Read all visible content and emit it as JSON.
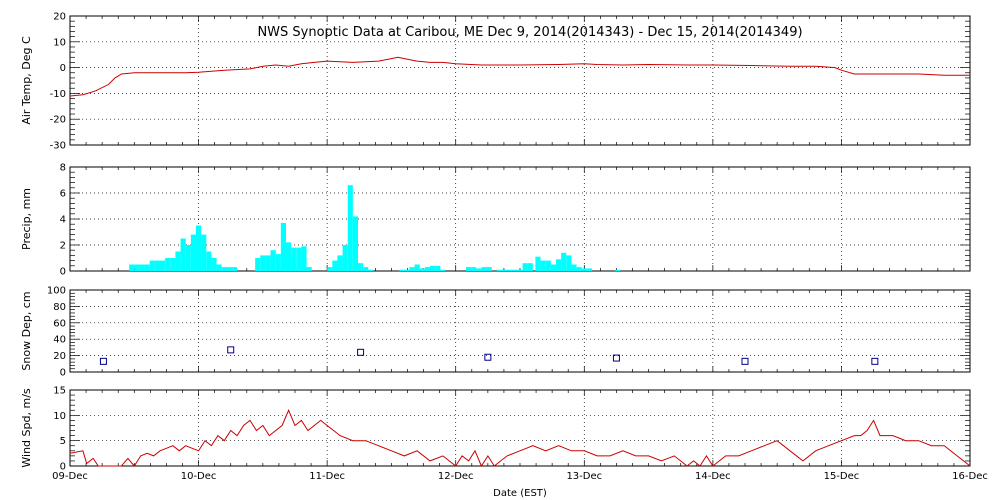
{
  "chart_data": {
    "type": "line",
    "title": "NWS Synoptic Data at Caribou, ME   Dec  9, 2014(2014343) - Dec 15, 2014(2014349)",
    "xlabel": "Date (EST)",
    "x_range": [
      "09-Dec",
      "16-Dec"
    ],
    "x_ticks": [
      "09-Dec",
      "10-Dec",
      "11-Dec",
      "12-Dec",
      "13-Dec",
      "14-Dec",
      "15-Dec",
      "16-Dec"
    ],
    "grid": true,
    "panels": [
      {
        "id": "temp",
        "type": "line",
        "ylabel": "Air Temp, Deg C",
        "ylim": [
          -30,
          20
        ],
        "yticks": [
          "20",
          "10",
          "0",
          "-10",
          "-20",
          "-30"
        ],
        "color": "#cc0000",
        "x_days": [
          0,
          0.1,
          0.2,
          0.3,
          0.35,
          0.4,
          0.5,
          0.7,
          0.9,
          1.0,
          1.2,
          1.4,
          1.5,
          1.6,
          1.7,
          1.8,
          1.9,
          2.0,
          2.2,
          2.4,
          2.5,
          2.55,
          2.6,
          2.7,
          2.8,
          2.9,
          3.0,
          3.2,
          3.5,
          3.8,
          4.0,
          4.1,
          4.3,
          4.5,
          4.8,
          5.0,
          5.3,
          5.6,
          5.8,
          5.95,
          6.0,
          6.1,
          6.3,
          6.6,
          6.8,
          7.0
        ],
        "values": [
          -11,
          -10.5,
          -9,
          -6.5,
          -4,
          -2.5,
          -2,
          -2,
          -2,
          -1.8,
          -1,
          -0.5,
          0.5,
          1,
          0.5,
          1.5,
          2,
          2.5,
          2,
          2.5,
          3.5,
          4,
          3.5,
          2.5,
          2,
          2,
          1.5,
          1,
          1,
          1.2,
          1.5,
          1.2,
          1,
          1.2,
          1,
          1,
          0.8,
          0.5,
          0.5,
          0,
          -1,
          -2.5,
          -2.5,
          -2.5,
          -3,
          -3
        ]
      },
      {
        "id": "precip",
        "type": "bar",
        "ylabel": "Precip, mm",
        "ylim": [
          0,
          8
        ],
        "yticks": [
          "8",
          "6",
          "4",
          "2",
          "0"
        ],
        "color": "#00ffff",
        "bar_width_days": 0.04,
        "x_days": [
          0.48,
          0.52,
          0.56,
          0.6,
          0.64,
          0.68,
          0.72,
          0.76,
          0.8,
          0.84,
          0.88,
          0.92,
          0.96,
          1.0,
          1.04,
          1.08,
          1.12,
          1.16,
          1.2,
          1.24,
          1.28,
          1.46,
          1.5,
          1.54,
          1.58,
          1.62,
          1.66,
          1.7,
          1.74,
          1.78,
          1.82,
          1.86,
          2.02,
          2.06,
          2.1,
          2.14,
          2.18,
          2.22,
          2.26,
          2.3,
          2.34,
          2.58,
          2.62,
          2.66,
          2.7,
          2.74,
          2.78,
          2.82,
          2.86,
          2.9,
          3.1,
          3.14,
          3.18,
          3.22,
          3.26,
          3.34,
          3.38,
          3.42,
          3.46,
          3.5,
          3.54,
          3.58,
          3.64,
          3.68,
          3.72,
          3.76,
          3.8,
          3.84,
          3.88,
          3.92,
          3.96,
          4.0,
          4.04,
          4.26
        ],
        "values": [
          0.5,
          0.5,
          0.5,
          0.5,
          0.8,
          0.8,
          0.8,
          1.0,
          1.0,
          1.5,
          2.5,
          2.0,
          2.8,
          3.5,
          2.8,
          1.5,
          1.0,
          0.5,
          0.3,
          0.3,
          0.3,
          1.0,
          1.2,
          1.2,
          1.6,
          1.3,
          3.7,
          2.2,
          1.8,
          1.8,
          1.9,
          0.3,
          0.3,
          0.8,
          1.2,
          2.0,
          6.6,
          4.2,
          0.6,
          0.3,
          0.1,
          0.1,
          0.1,
          0.3,
          0.5,
          0.2,
          0.3,
          0.4,
          0.4,
          0.1,
          0.3,
          0.3,
          0.2,
          0.3,
          0.3,
          0.1,
          0.1,
          0.1,
          0.1,
          0.1,
          0.6,
          0.6,
          1.1,
          0.8,
          0.8,
          0.5,
          0.9,
          1.4,
          1.2,
          0.5,
          0.3,
          0.2,
          0.2,
          0.1
        ]
      },
      {
        "id": "snow",
        "type": "scatter",
        "ylabel": "Snow Dep, cm",
        "ylim": [
          0,
          100
        ],
        "yticks": [
          "100",
          "80",
          "60",
          "40",
          "20",
          "0"
        ],
        "color": "#000088",
        "x_days": [
          0.26,
          1.25,
          2.26,
          3.25,
          4.25,
          5.25,
          6.26
        ],
        "values": [
          13,
          27,
          24,
          18,
          17,
          13,
          13
        ]
      },
      {
        "id": "wind",
        "type": "line",
        "ylabel": "Wind Spd, m/s",
        "ylim": [
          0,
          15
        ],
        "yticks": [
          "15",
          "10",
          "5",
          "0"
        ],
        "color": "#cc0000",
        "x_days": [
          0,
          0.1,
          0.13,
          0.18,
          0.22,
          0.28,
          0.35,
          0.4,
          0.45,
          0.5,
          0.55,
          0.6,
          0.65,
          0.7,
          0.75,
          0.8,
          0.85,
          0.9,
          0.95,
          1.0,
          1.05,
          1.1,
          1.15,
          1.2,
          1.25,
          1.3,
          1.35,
          1.4,
          1.45,
          1.5,
          1.55,
          1.6,
          1.65,
          1.7,
          1.75,
          1.8,
          1.85,
          1.9,
          1.95,
          2.0,
          2.05,
          2.1,
          2.2,
          2.3,
          2.4,
          2.5,
          2.6,
          2.7,
          2.8,
          2.9,
          3.0,
          3.05,
          3.1,
          3.15,
          3.2,
          3.25,
          3.3,
          3.35,
          3.4,
          3.5,
          3.6,
          3.7,
          3.8,
          3.9,
          4.0,
          4.1,
          4.2,
          4.3,
          4.4,
          4.5,
          4.6,
          4.7,
          4.8,
          4.85,
          4.9,
          4.95,
          5.0,
          5.05,
          5.1,
          5.2,
          5.3,
          5.4,
          5.5,
          5.6,
          5.7,
          5.8,
          5.9,
          6.0,
          6.1,
          6.15,
          6.2,
          6.25,
          6.3,
          6.4,
          6.5,
          6.6,
          6.7,
          6.8,
          6.9,
          6.95,
          7.0
        ],
        "values": [
          2.5,
          3,
          0.5,
          1.5,
          0,
          0,
          0,
          0,
          1.5,
          0,
          2,
          2.5,
          2,
          3,
          3.5,
          4,
          3,
          4,
          3.5,
          3,
          5,
          4,
          6,
          5,
          7,
          6,
          8,
          9,
          7,
          8,
          6,
          7,
          8,
          11,
          8,
          9,
          7,
          8,
          9,
          8,
          7,
          6,
          5,
          5,
          4,
          3,
          2,
          3,
          1,
          2,
          0,
          2,
          1,
          3,
          0,
          2,
          0,
          1,
          2,
          3,
          4,
          3,
          4,
          3,
          3,
          2,
          2,
          3,
          2,
          2,
          1,
          2,
          0,
          1,
          0,
          2,
          0,
          1,
          2,
          2,
          3,
          4,
          5,
          3,
          1,
          3,
          4,
          5,
          6,
          6,
          7,
          9,
          6,
          6,
          5,
          5,
          4,
          4,
          2,
          1,
          0
        ]
      }
    ]
  }
}
